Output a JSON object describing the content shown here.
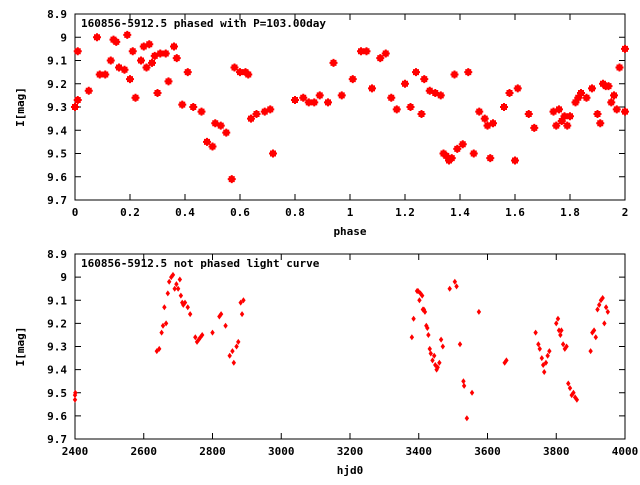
{
  "chart_data": [
    {
      "type": "scatter",
      "title": "160856-5912.5 phased with P=103.00day",
      "xlabel": "phase",
      "ylabel": "I[mag]",
      "xlim": [
        0,
        2
      ],
      "ylim": [
        9.7,
        8.9
      ],
      "y_inverted": true,
      "grid": false,
      "marker_color": "#ff0000",
      "marker": "filled-square-cross",
      "xticks": [
        "0",
        "0.2",
        "0.4",
        "0.6",
        "0.8",
        "1",
        "1.2",
        "1.4",
        "1.6",
        "1.8",
        "2"
      ],
      "yticks": [
        "8.9",
        "9",
        "9.1",
        "9.2",
        "9.3",
        "9.4",
        "9.5",
        "9.6",
        "9.7"
      ],
      "series": [
        {
          "points": [
            [
              0.0,
              9.3
            ],
            [
              0.01,
              9.27
            ],
            [
              0.01,
              9.06
            ],
            [
              0.05,
              9.23
            ],
            [
              0.08,
              9.0
            ],
            [
              0.09,
              9.16
            ],
            [
              0.11,
              9.16
            ],
            [
              0.13,
              9.1
            ],
            [
              0.14,
              9.01
            ],
            [
              0.15,
              9.02
            ],
            [
              0.16,
              9.13
            ],
            [
              0.18,
              9.14
            ],
            [
              0.19,
              8.99
            ],
            [
              0.2,
              9.18
            ],
            [
              0.21,
              9.06
            ],
            [
              0.22,
              9.26
            ],
            [
              0.24,
              9.1
            ],
            [
              0.25,
              9.04
            ],
            [
              0.26,
              9.13
            ],
            [
              0.27,
              9.03
            ],
            [
              0.28,
              9.11
            ],
            [
              0.29,
              9.08
            ],
            [
              0.3,
              9.24
            ],
            [
              0.31,
              9.07
            ],
            [
              0.33,
              9.07
            ],
            [
              0.34,
              9.19
            ],
            [
              0.36,
              9.04
            ],
            [
              0.37,
              9.09
            ],
            [
              0.39,
              9.29
            ],
            [
              0.41,
              9.15
            ],
            [
              0.43,
              9.3
            ],
            [
              0.46,
              9.32
            ],
            [
              0.48,
              9.45
            ],
            [
              0.5,
              9.47
            ],
            [
              0.51,
              9.37
            ],
            [
              0.53,
              9.38
            ],
            [
              0.55,
              9.41
            ],
            [
              0.57,
              9.61
            ],
            [
              0.58,
              9.13
            ],
            [
              0.6,
              9.15
            ],
            [
              0.62,
              9.15
            ],
            [
              0.63,
              9.16
            ],
            [
              0.64,
              9.35
            ],
            [
              0.66,
              9.33
            ],
            [
              0.69,
              9.32
            ],
            [
              0.71,
              9.31
            ],
            [
              0.72,
              9.5
            ],
            [
              0.8,
              9.27
            ],
            [
              0.83,
              9.26
            ],
            [
              0.85,
              9.28
            ],
            [
              0.87,
              9.28
            ],
            [
              0.89,
              9.25
            ],
            [
              0.92,
              9.28
            ],
            [
              0.94,
              9.11
            ],
            [
              0.97,
              9.25
            ],
            [
              1.01,
              9.18
            ],
            [
              1.04,
              9.06
            ],
            [
              1.06,
              9.06
            ],
            [
              1.08,
              9.22
            ],
            [
              1.11,
              9.09
            ],
            [
              1.13,
              9.07
            ],
            [
              1.15,
              9.26
            ],
            [
              1.17,
              9.31
            ],
            [
              1.2,
              9.2
            ],
            [
              1.22,
              9.3
            ],
            [
              1.24,
              9.15
            ],
            [
              1.26,
              9.33
            ],
            [
              1.27,
              9.18
            ],
            [
              1.29,
              9.23
            ],
            [
              1.31,
              9.24
            ],
            [
              1.33,
              9.25
            ],
            [
              1.34,
              9.5
            ],
            [
              1.35,
              9.51
            ],
            [
              1.36,
              9.53
            ],
            [
              1.37,
              9.52
            ],
            [
              1.38,
              9.16
            ],
            [
              1.39,
              9.48
            ],
            [
              1.41,
              9.46
            ],
            [
              1.43,
              9.15
            ],
            [
              1.45,
              9.5
            ],
            [
              1.47,
              9.32
            ],
            [
              1.49,
              9.35
            ],
            [
              1.5,
              9.38
            ],
            [
              1.51,
              9.52
            ],
            [
              1.52,
              9.37
            ],
            [
              1.56,
              9.3
            ],
            [
              1.58,
              9.24
            ],
            [
              1.6,
              9.53
            ],
            [
              1.61,
              9.22
            ],
            [
              1.65,
              9.33
            ],
            [
              1.67,
              9.39
            ],
            [
              1.74,
              9.32
            ],
            [
              1.75,
              9.38
            ],
            [
              1.76,
              9.31
            ],
            [
              1.77,
              9.36
            ],
            [
              1.78,
              9.34
            ],
            [
              1.79,
              9.38
            ],
            [
              1.8,
              9.34
            ],
            [
              1.82,
              9.28
            ],
            [
              1.83,
              9.26
            ],
            [
              1.84,
              9.24
            ],
            [
              1.86,
              9.26
            ],
            [
              1.88,
              9.22
            ],
            [
              1.9,
              9.33
            ],
            [
              1.91,
              9.37
            ],
            [
              1.92,
              9.2
            ],
            [
              1.93,
              9.21
            ],
            [
              1.94,
              9.21
            ],
            [
              1.95,
              9.28
            ],
            [
              1.96,
              9.25
            ],
            [
              1.97,
              9.31
            ],
            [
              1.98,
              9.13
            ],
            [
              2.0,
              9.32
            ],
            [
              2.0,
              9.05
            ]
          ]
        }
      ]
    },
    {
      "type": "scatter",
      "title": "160856-5912.5 not phased light curve",
      "xlabel": "hjd0",
      "ylabel": "I[mag]",
      "xlim": [
        2400,
        4000
      ],
      "ylim": [
        9.7,
        8.9
      ],
      "y_inverted": true,
      "grid": false,
      "marker_color": "#ff0000",
      "marker": "filled-diamond",
      "xticks": [
        "2400",
        "2600",
        "2800",
        "3000",
        "3200",
        "3400",
        "3600",
        "3800",
        "4000"
      ],
      "yticks": [
        "8.9",
        "9",
        "9.1",
        "9.2",
        "9.3",
        "9.4",
        "9.5",
        "9.6",
        "9.7"
      ],
      "series": [
        {
          "points": [
            [
              2400,
              9.51
            ],
            [
              2400,
              9.53
            ],
            [
              2401,
              9.5
            ],
            [
              2638,
              9.32
            ],
            [
              2645,
              9.31
            ],
            [
              2652,
              9.24
            ],
            [
              2656,
              9.21
            ],
            [
              2660,
              9.13
            ],
            [
              2665,
              9.2
            ],
            [
              2670,
              9.07
            ],
            [
              2674,
              9.02
            ],
            [
              2680,
              9.0
            ],
            [
              2685,
              8.99
            ],
            [
              2690,
              9.05
            ],
            [
              2695,
              9.03
            ],
            [
              2700,
              9.05
            ],
            [
              2705,
              9.01
            ],
            [
              2708,
              9.08
            ],
            [
              2712,
              9.11
            ],
            [
              2715,
              9.12
            ],
            [
              2720,
              9.11
            ],
            [
              2728,
              9.13
            ],
            [
              2735,
              9.16
            ],
            [
              2750,
              9.26
            ],
            [
              2755,
              9.28
            ],
            [
              2760,
              9.27
            ],
            [
              2765,
              9.26
            ],
            [
              2770,
              9.25
            ],
            [
              2800,
              9.24
            ],
            [
              2820,
              9.17
            ],
            [
              2825,
              9.16
            ],
            [
              2838,
              9.21
            ],
            [
              2850,
              9.34
            ],
            [
              2858,
              9.32
            ],
            [
              2862,
              9.37
            ],
            [
              2870,
              9.3
            ],
            [
              2875,
              9.28
            ],
            [
              2882,
              9.11
            ],
            [
              2886,
              9.16
            ],
            [
              2890,
              9.1
            ],
            [
              3380,
              9.26
            ],
            [
              3385,
              9.18
            ],
            [
              3395,
              9.06
            ],
            [
              3398,
              9.06
            ],
            [
              3402,
              9.1
            ],
            [
              3405,
              9.07
            ],
            [
              3410,
              9.08
            ],
            [
              3412,
              9.14
            ],
            [
              3415,
              9.14
            ],
            [
              3418,
              9.15
            ],
            [
              3422,
              9.21
            ],
            [
              3425,
              9.22
            ],
            [
              3428,
              9.25
            ],
            [
              3432,
              9.31
            ],
            [
              3435,
              9.33
            ],
            [
              3440,
              9.36
            ],
            [
              3445,
              9.34
            ],
            [
              3448,
              9.38
            ],
            [
              3452,
              9.4
            ],
            [
              3455,
              9.39
            ],
            [
              3460,
              9.37
            ],
            [
              3465,
              9.27
            ],
            [
              3470,
              9.3
            ],
            [
              3490,
              9.05
            ],
            [
              3505,
              9.02
            ],
            [
              3510,
              9.04
            ],
            [
              3520,
              9.29
            ],
            [
              3530,
              9.45
            ],
            [
              3532,
              9.47
            ],
            [
              3540,
              9.61
            ],
            [
              3555,
              9.5
            ],
            [
              3575,
              9.15
            ],
            [
              3650,
              9.37
            ],
            [
              3655,
              9.36
            ],
            [
              3740,
              9.24
            ],
            [
              3748,
              9.29
            ],
            [
              3752,
              9.31
            ],
            [
              3758,
              9.35
            ],
            [
              3762,
              9.38
            ],
            [
              3765,
              9.41
            ],
            [
              3770,
              9.37
            ],
            [
              3775,
              9.34
            ],
            [
              3780,
              9.32
            ],
            [
              3800,
              9.2
            ],
            [
              3805,
              9.18
            ],
            [
              3808,
              9.23
            ],
            [
              3812,
              9.25
            ],
            [
              3815,
              9.23
            ],
            [
              3820,
              9.29
            ],
            [
              3825,
              9.31
            ],
            [
              3830,
              9.3
            ],
            [
              3835,
              9.46
            ],
            [
              3840,
              9.48
            ],
            [
              3845,
              9.51
            ],
            [
              3850,
              9.5
            ],
            [
              3855,
              9.52
            ],
            [
              3860,
              9.53
            ],
            [
              3900,
              9.32
            ],
            [
              3905,
              9.24
            ],
            [
              3910,
              9.23
            ],
            [
              3915,
              9.26
            ],
            [
              3920,
              9.14
            ],
            [
              3925,
              9.12
            ],
            [
              3930,
              9.1
            ],
            [
              3935,
              9.09
            ],
            [
              3940,
              9.2
            ],
            [
              3945,
              9.13
            ],
            [
              3950,
              9.15
            ]
          ]
        }
      ]
    }
  ]
}
